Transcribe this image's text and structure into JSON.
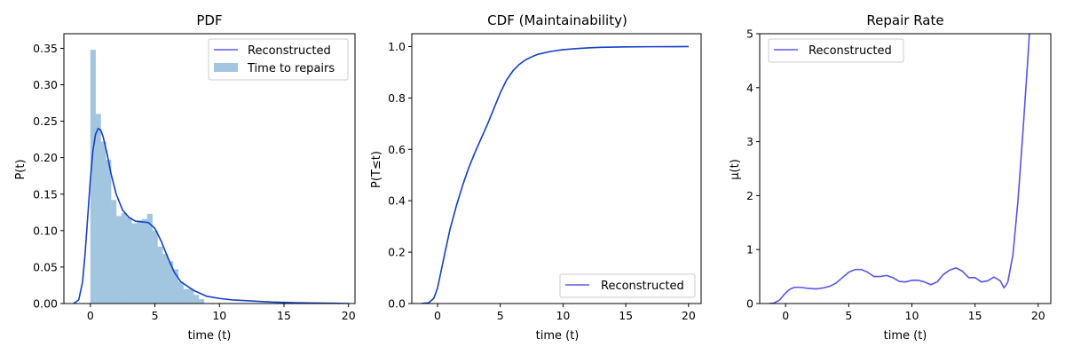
{
  "colors": {
    "pdf_line": "#1240c8",
    "hist_fill": "#a3c6e0",
    "cdf_line": "#1240c8",
    "rate_line": "#5555e6",
    "legend_line": "#5a5ae8",
    "axis": "#000000",
    "legend_border": "#cccccc"
  },
  "chart_data": [
    {
      "type": "histogram",
      "title": "PDF",
      "xlabel": "time (t)",
      "ylabel": "P(t)",
      "xlim": [
        -2.05,
        20.5
      ],
      "ylim": [
        0,
        0.37
      ],
      "xticks": [
        0,
        5,
        10,
        15,
        20
      ],
      "xtick_labels": [
        "0",
        "5",
        "10",
        "15",
        "20"
      ],
      "yticks": [
        0,
        0.05,
        0.1,
        0.15,
        0.2,
        0.25,
        0.3,
        0.35
      ],
      "ytick_labels": [
        "0.00",
        "0.05",
        "0.10",
        "0.15",
        "0.20",
        "0.25",
        "0.30",
        "0.35"
      ],
      "legend": {
        "position": "upper right",
        "line_label": "Reconstructed",
        "bar_label": "Time to repairs"
      },
      "hist_bin_width": 0.4,
      "hist_bins": [
        {
          "x": 0.0,
          "h": 0.348
        },
        {
          "x": 0.4,
          "h": 0.26
        },
        {
          "x": 0.8,
          "h": 0.222
        },
        {
          "x": 1.2,
          "h": 0.197
        },
        {
          "x": 1.6,
          "h": 0.142
        },
        {
          "x": 2.0,
          "h": 0.12
        },
        {
          "x": 2.4,
          "h": 0.124
        },
        {
          "x": 2.8,
          "h": 0.118
        },
        {
          "x": 3.2,
          "h": 0.11
        },
        {
          "x": 3.6,
          "h": 0.114
        },
        {
          "x": 4.0,
          "h": 0.116
        },
        {
          "x": 4.4,
          "h": 0.123
        },
        {
          "x": 4.8,
          "h": 0.1
        },
        {
          "x": 5.2,
          "h": 0.078
        },
        {
          "x": 5.6,
          "h": 0.068
        },
        {
          "x": 6.0,
          "h": 0.058
        },
        {
          "x": 6.4,
          "h": 0.047
        },
        {
          "x": 6.8,
          "h": 0.03
        },
        {
          "x": 7.2,
          "h": 0.02
        },
        {
          "x": 7.6,
          "h": 0.02
        },
        {
          "x": 8.0,
          "h": 0.012
        },
        {
          "x": 8.4,
          "h": 0.006
        }
      ],
      "curve": [
        [
          -1.3,
          0.0
        ],
        [
          -0.9,
          0.005
        ],
        [
          -0.6,
          0.03
        ],
        [
          -0.4,
          0.07
        ],
        [
          -0.2,
          0.12
        ],
        [
          0.0,
          0.17
        ],
        [
          0.2,
          0.21
        ],
        [
          0.4,
          0.232
        ],
        [
          0.6,
          0.24
        ],
        [
          0.8,
          0.238
        ],
        [
          1.0,
          0.228
        ],
        [
          1.3,
          0.205
        ],
        [
          1.6,
          0.178
        ],
        [
          2.0,
          0.15
        ],
        [
          2.5,
          0.128
        ],
        [
          3.0,
          0.118
        ],
        [
          3.5,
          0.113
        ],
        [
          4.0,
          0.112
        ],
        [
          4.5,
          0.111
        ],
        [
          5.0,
          0.103
        ],
        [
          5.5,
          0.085
        ],
        [
          6.0,
          0.063
        ],
        [
          6.5,
          0.043
        ],
        [
          7.0,
          0.03
        ],
        [
          7.5,
          0.024
        ],
        [
          8.0,
          0.018
        ],
        [
          9.0,
          0.01
        ],
        [
          10.0,
          0.007
        ],
        [
          11.0,
          0.005
        ],
        [
          12.0,
          0.004
        ],
        [
          13.0,
          0.003
        ],
        [
          14.0,
          0.002
        ],
        [
          16.0,
          0.001
        ],
        [
          18.0,
          0.0005
        ],
        [
          20.0,
          0.0
        ]
      ]
    },
    {
      "type": "line",
      "title": "CDF (Maintainability)",
      "xlabel": "time (t)",
      "ylabel": "P(T≤t)",
      "xlim": [
        -2.05,
        21.0
      ],
      "ylim": [
        0,
        1.05
      ],
      "xticks": [
        0,
        5,
        10,
        15,
        20
      ],
      "xtick_labels": [
        "0",
        "5",
        "10",
        "15",
        "20"
      ],
      "yticks": [
        0,
        0.2,
        0.4,
        0.6,
        0.8,
        1.0
      ],
      "ytick_labels": [
        "0.0",
        "0.2",
        "0.4",
        "0.6",
        "0.8",
        "1.0"
      ],
      "legend": {
        "position": "lower right",
        "line_label": "Reconstructed"
      },
      "curve": [
        [
          -1.3,
          0.0
        ],
        [
          -0.7,
          0.003
        ],
        [
          -0.3,
          0.02
        ],
        [
          0.0,
          0.06
        ],
        [
          0.3,
          0.13
        ],
        [
          0.6,
          0.2
        ],
        [
          1.0,
          0.29
        ],
        [
          1.5,
          0.38
        ],
        [
          2.0,
          0.46
        ],
        [
          2.5,
          0.53
        ],
        [
          3.0,
          0.59
        ],
        [
          3.5,
          0.645
        ],
        [
          4.0,
          0.7
        ],
        [
          4.5,
          0.76
        ],
        [
          5.0,
          0.82
        ],
        [
          5.5,
          0.87
        ],
        [
          6.0,
          0.905
        ],
        [
          6.5,
          0.93
        ],
        [
          7.0,
          0.948
        ],
        [
          7.5,
          0.96
        ],
        [
          8.0,
          0.97
        ],
        [
          9.0,
          0.981
        ],
        [
          10.0,
          0.988
        ],
        [
          11.0,
          0.992
        ],
        [
          12.0,
          0.995
        ],
        [
          13.0,
          0.997
        ],
        [
          14.0,
          0.998
        ],
        [
          15.0,
          0.999
        ],
        [
          17.0,
          0.9995
        ],
        [
          20.0,
          1.0
        ]
      ]
    },
    {
      "type": "line",
      "title": "Repair Rate",
      "xlabel": "time (t)",
      "ylabel": "μ(t)",
      "xlim": [
        -2.05,
        21.0
      ],
      "ylim": [
        0,
        5
      ],
      "xticks": [
        0,
        5,
        10,
        15,
        20
      ],
      "xtick_labels": [
        "0",
        "5",
        "10",
        "15",
        "20"
      ],
      "yticks": [
        0,
        1,
        2,
        3,
        4,
        5
      ],
      "ytick_labels": [
        "0",
        "1",
        "2",
        "3",
        "4",
        "5"
      ],
      "legend": {
        "position": "upper left",
        "line_label": "Reconstructed"
      },
      "curve": [
        [
          -1.3,
          0.0
        ],
        [
          -0.9,
          0.01
        ],
        [
          -0.5,
          0.06
        ],
        [
          -0.1,
          0.17
        ],
        [
          0.3,
          0.26
        ],
        [
          0.7,
          0.3
        ],
        [
          1.2,
          0.3
        ],
        [
          1.8,
          0.28
        ],
        [
          2.4,
          0.27
        ],
        [
          3.0,
          0.29
        ],
        [
          3.5,
          0.32
        ],
        [
          4.0,
          0.38
        ],
        [
          4.5,
          0.48
        ],
        [
          5.0,
          0.58
        ],
        [
          5.5,
          0.63
        ],
        [
          6.0,
          0.63
        ],
        [
          6.5,
          0.58
        ],
        [
          7.0,
          0.5
        ],
        [
          7.5,
          0.5
        ],
        [
          8.0,
          0.52
        ],
        [
          8.5,
          0.48
        ],
        [
          9.0,
          0.41
        ],
        [
          9.5,
          0.4
        ],
        [
          10.0,
          0.43
        ],
        [
          10.5,
          0.43
        ],
        [
          11.0,
          0.4
        ],
        [
          11.5,
          0.35
        ],
        [
          12.0,
          0.4
        ],
        [
          12.5,
          0.54
        ],
        [
          13.0,
          0.62
        ],
        [
          13.5,
          0.66
        ],
        [
          14.0,
          0.6
        ],
        [
          14.5,
          0.48
        ],
        [
          15.0,
          0.48
        ],
        [
          15.5,
          0.4
        ],
        [
          16.0,
          0.42
        ],
        [
          16.5,
          0.49
        ],
        [
          17.0,
          0.42
        ],
        [
          17.3,
          0.29
        ],
        [
          17.6,
          0.4
        ],
        [
          18.0,
          0.9
        ],
        [
          18.4,
          1.9
        ],
        [
          18.8,
          3.2
        ],
        [
          19.2,
          4.6
        ],
        [
          19.3,
          5.0
        ]
      ]
    }
  ]
}
